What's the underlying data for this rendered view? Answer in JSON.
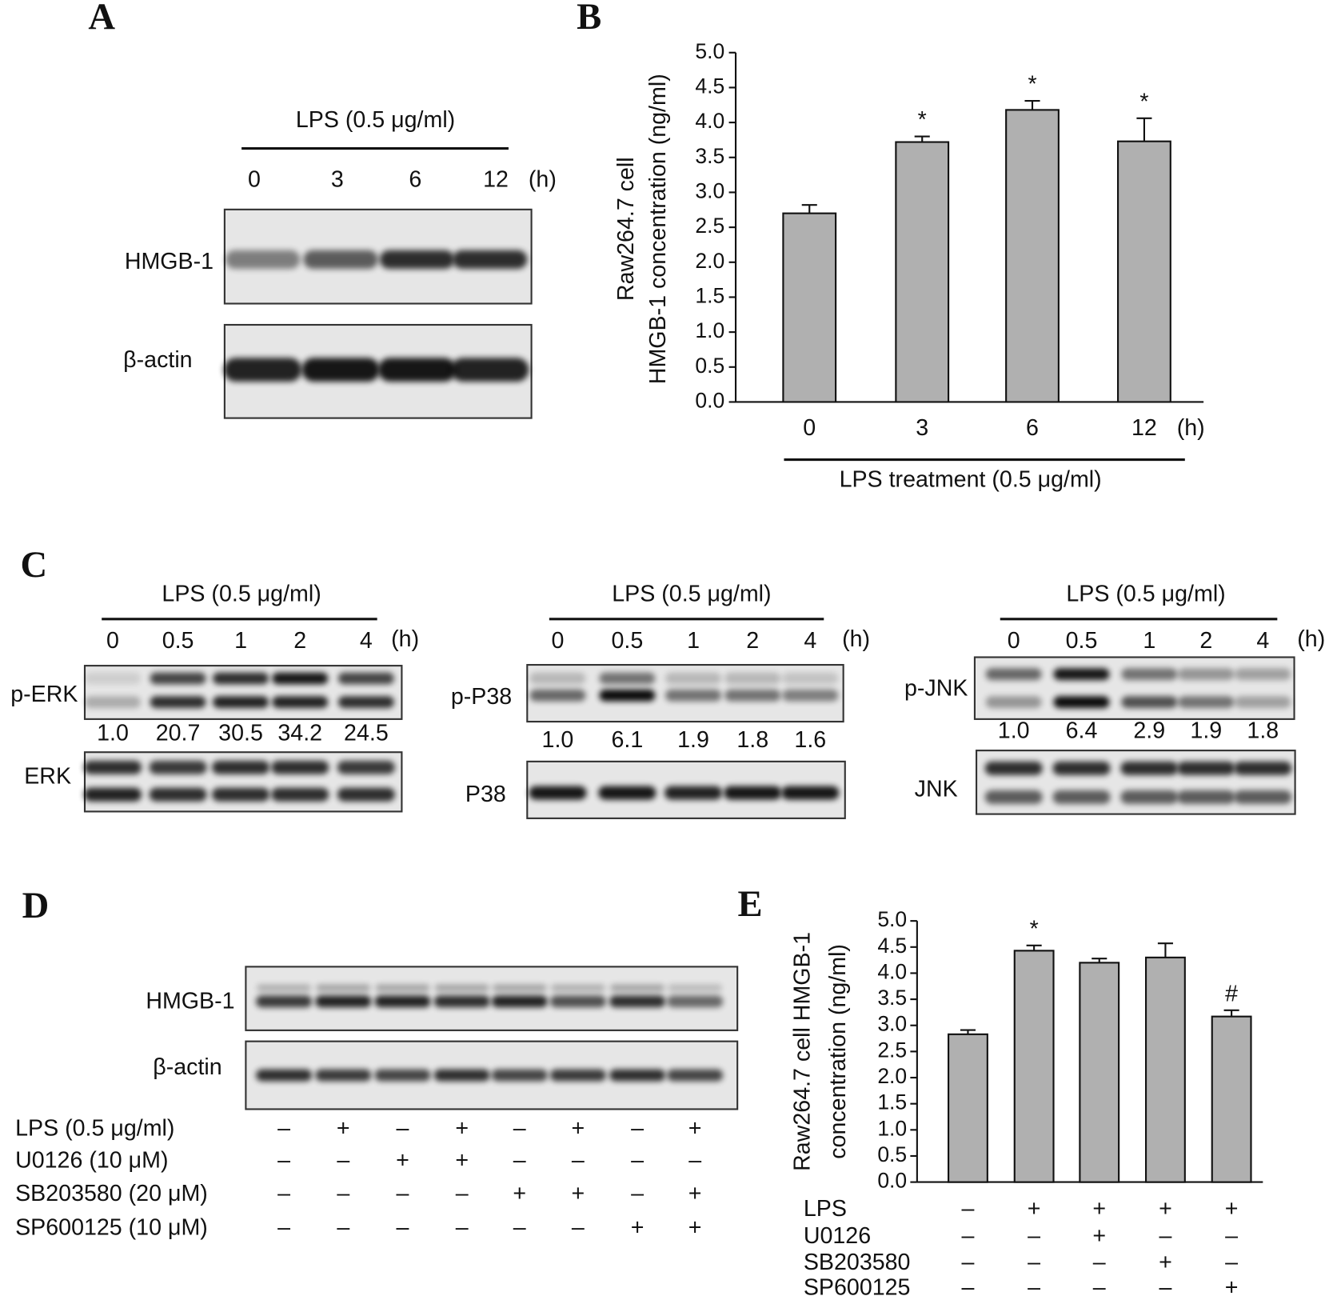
{
  "chart_data": [
    {
      "type": "bar",
      "panel": "B",
      "ylabel": [
        "Raw264.7 cell",
        "HMGB-1 concentration (ng/ml)"
      ],
      "categories": [
        "0",
        "3",
        "6",
        "12"
      ],
      "unit": "(h)",
      "xlabel": "LPS treatment (0.5 μg/ml)",
      "values": [
        2.7,
        3.72,
        4.18,
        3.73
      ],
      "errors": [
        0.12,
        0.08,
        0.13,
        0.33
      ],
      "annotations": [
        null,
        "*",
        "*",
        "*"
      ],
      "color": "#b0b0b0",
      "ylim": [
        0,
        5
      ],
      "yticks": [
        {
          "value": 0,
          "label": "0.0"
        },
        0.5,
        {
          "value": 1,
          "label": "1.0"
        },
        1.5,
        {
          "value": 2,
          "label": "2.0"
        },
        2.5,
        {
          "value": 3,
          "label": "3.0"
        },
        3.5,
        {
          "value": 4,
          "label": "4.0"
        },
        4.5,
        {
          "value": 5,
          "label": "5.0"
        }
      ]
    },
    {
      "type": "bar",
      "panel": "E",
      "ylabel": [
        "Raw264.7 cell HMGB-1",
        "concentration (ng/ml)"
      ],
      "values": [
        2.83,
        4.43,
        4.2,
        4.3,
        3.17
      ],
      "errors": [
        0.08,
        0.1,
        0.08,
        0.27,
        0.12
      ],
      "annotations": [
        null,
        "*",
        null,
        null,
        "#"
      ],
      "color": "#b0b0b0",
      "treatments": [
        {
          "name": "LPS",
          "signs": [
            "–",
            "+",
            "+",
            "+",
            "+"
          ]
        },
        {
          "name": "U0126",
          "signs": [
            "–",
            "–",
            "+",
            "–",
            "–"
          ]
        },
        {
          "name": "SB203580",
          "signs": [
            "–",
            "–",
            "–",
            "+",
            "–"
          ]
        },
        {
          "name": "SP600125",
          "signs": [
            "–",
            "–",
            "–",
            "–",
            "+"
          ]
        }
      ],
      "ylim": [
        0,
        5
      ],
      "yticks": [
        {
          "value": 0,
          "label": "0.0"
        },
        0.5,
        {
          "value": 1,
          "label": "1.0"
        },
        1.5,
        {
          "value": 2,
          "label": "2.0"
        },
        2.5,
        {
          "value": 3,
          "label": "3.0"
        },
        3.5,
        {
          "value": 4,
          "label": "4.0"
        },
        4.5,
        {
          "value": 5,
          "label": "5.0"
        }
      ]
    }
  ],
  "blots": {
    "A": {
      "label": "A",
      "header": "LPS (0.5 μg/ml)",
      "times": [
        "0",
        "3",
        "6",
        "12"
      ],
      "unit": "(h)",
      "rows": [
        "HMGB-1",
        "β-actin"
      ]
    },
    "C": {
      "label": "C",
      "blots": [
        {
          "header": "LPS (0.5 μg/ml)",
          "times": [
            "0",
            "0.5",
            "1",
            "2",
            "4"
          ],
          "unit": "(h)",
          "phospho": "p-ERK",
          "ratios": [
            "1.0",
            "20.7",
            "30.5",
            "34.2",
            "24.5"
          ],
          "total": "ERK"
        },
        {
          "header": "LPS (0.5 μg/ml)",
          "times": [
            "0",
            "0.5",
            "1",
            "2",
            "4"
          ],
          "unit": "(h)",
          "phospho": "p-P38",
          "ratios": [
            "1.0",
            "6.1",
            "1.9",
            "1.8",
            "1.6"
          ],
          "total": "P38"
        },
        {
          "header": "LPS (0.5 μg/ml)",
          "times": [
            "0",
            "0.5",
            "1",
            "2",
            "4"
          ],
          "unit": "(h)",
          "phospho": "p-JNK",
          "ratios": [
            "1.0",
            "6.4",
            "2.9",
            "1.9",
            "1.8"
          ],
          "total": "JNK"
        }
      ]
    },
    "D": {
      "label": "D",
      "rows": [
        "HMGB-1",
        "β-actin"
      ],
      "treatments": [
        {
          "name": "LPS (0.5 μg/ml)",
          "signs": [
            "–",
            "+",
            "–",
            "+",
            "–",
            "+",
            "–",
            "+"
          ]
        },
        {
          "name": "U0126 (10 μM)",
          "signs": [
            "–",
            "–",
            "+",
            "+",
            "–",
            "–",
            "–",
            "–"
          ]
        },
        {
          "name": "SB203580 (20 μM)",
          "signs": [
            "–",
            "–",
            "–",
            "–",
            "+",
            "+",
            "–",
            "+"
          ]
        },
        {
          "name": "SP600125 (10 μM)",
          "signs": [
            "–",
            "–",
            "–",
            "–",
            "–",
            "–",
            "+",
            "+"
          ]
        }
      ]
    }
  }
}
